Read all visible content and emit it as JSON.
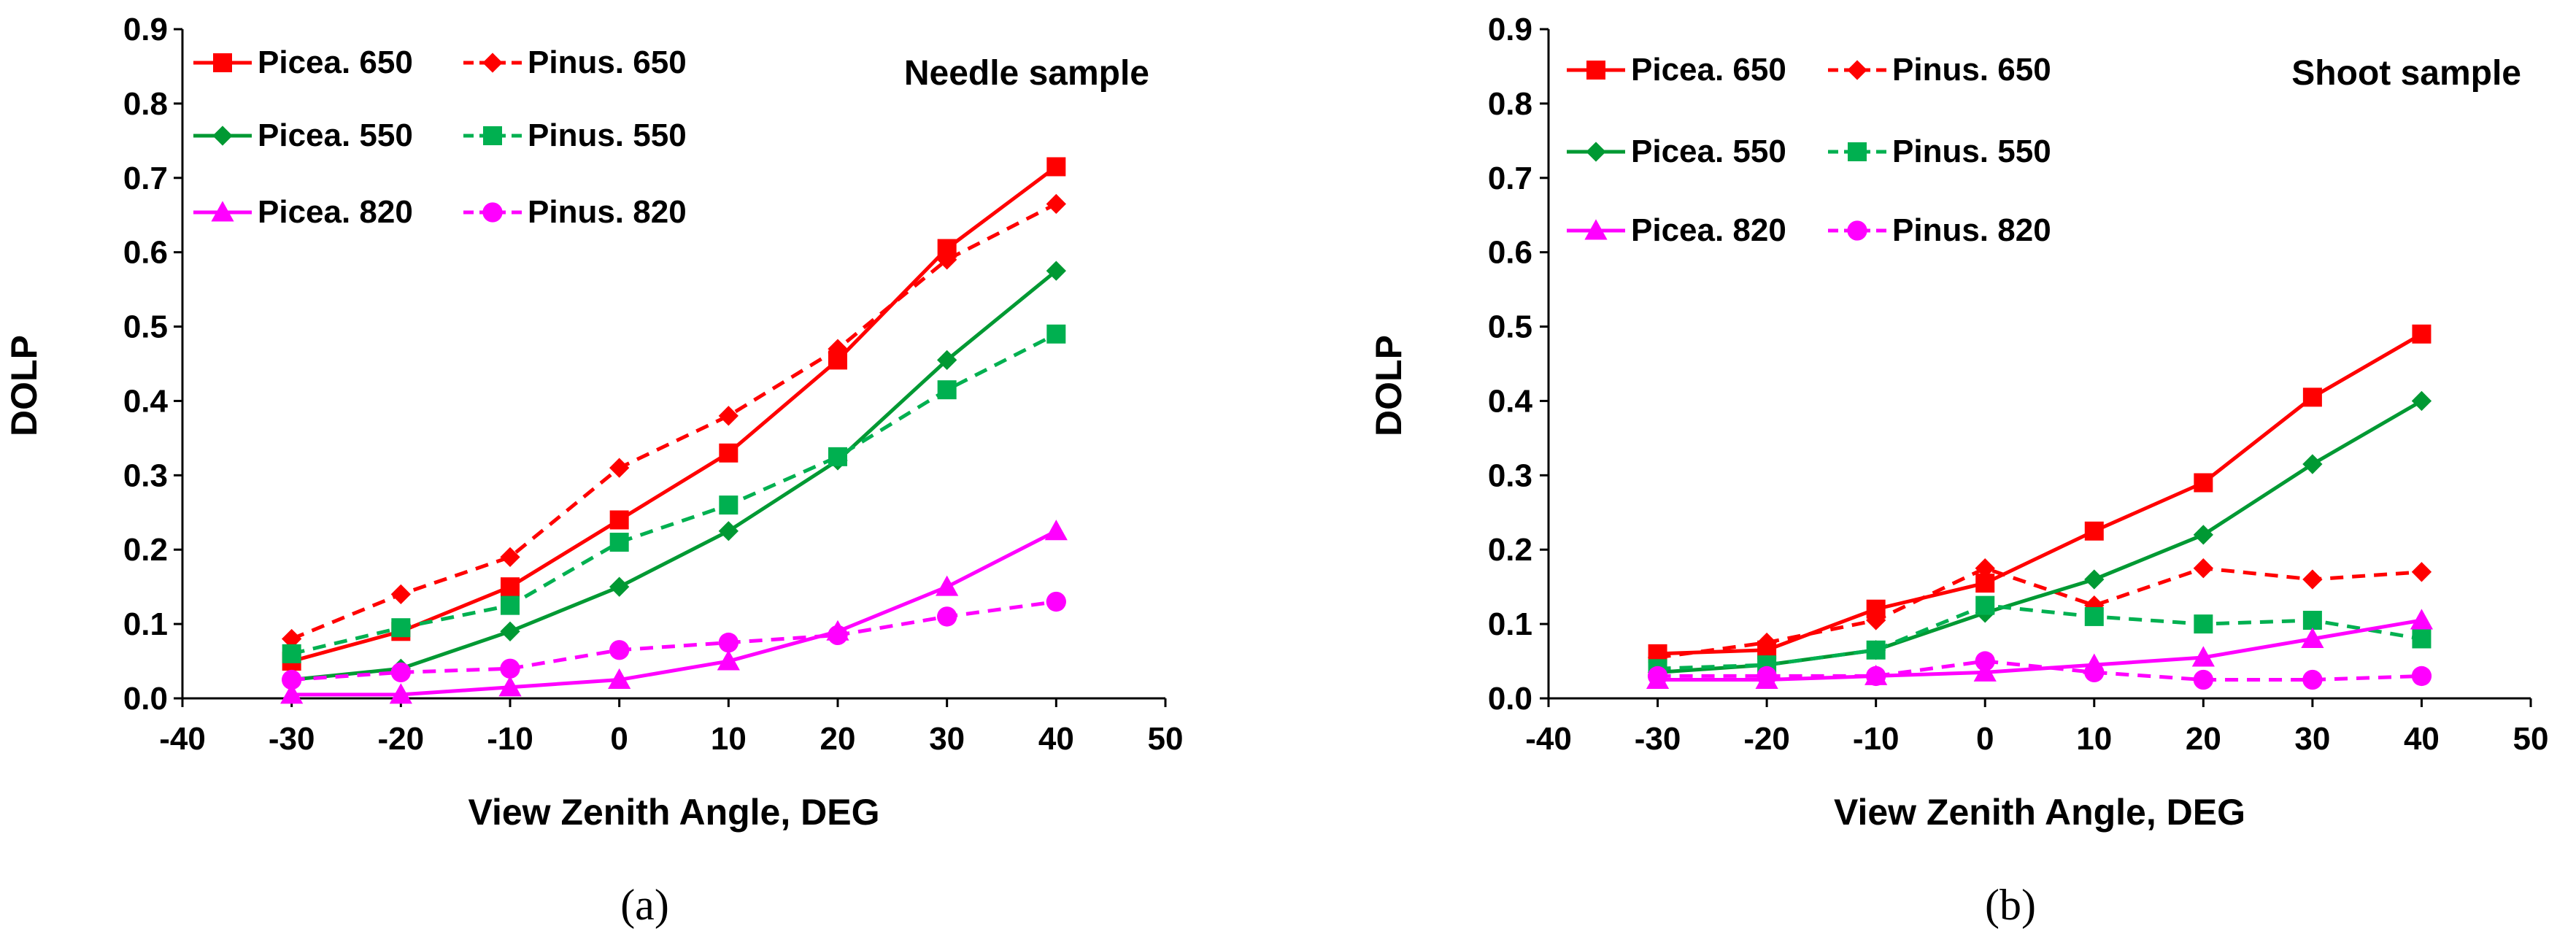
{
  "chart_data": [
    {
      "type": "line",
      "panel_label": "(a)",
      "annotation": "Needle sample",
      "xlabel": "View Zenith Angle, DEG",
      "ylabel": "DOLP",
      "xlim": [
        -40,
        50
      ],
      "ylim": [
        0.0,
        0.9
      ],
      "xticks": [
        "-40",
        "-30",
        "-20",
        "-10",
        "0",
        "10",
        "20",
        "30",
        "40",
        "50"
      ],
      "yticks": [
        "0.0",
        "0.1",
        "0.2",
        "0.3",
        "0.4",
        "0.5",
        "0.6",
        "0.7",
        "0.8",
        "0.9"
      ],
      "grid": false,
      "legend_position": "top",
      "x": [
        -30,
        -20,
        -10,
        0,
        10,
        20,
        30,
        40
      ],
      "series": [
        {
          "name": "Picea. 650",
          "color": "#ff0000",
          "marker": "square",
          "dashed": false,
          "values": [
            0.05,
            0.09,
            0.15,
            0.24,
            0.33,
            0.455,
            0.605,
            0.715
          ]
        },
        {
          "name": "Pinus. 650",
          "color": "#ff0000",
          "marker": "diamond",
          "dashed": true,
          "values": [
            0.08,
            0.14,
            0.19,
            0.31,
            0.38,
            0.47,
            0.59,
            0.665
          ]
        },
        {
          "name": "Picea. 550",
          "color": "#009933",
          "marker": "diamond",
          "dashed": false,
          "values": [
            0.025,
            0.04,
            0.09,
            0.15,
            0.225,
            0.32,
            0.455,
            0.575
          ]
        },
        {
          "name": "Pinus. 550",
          "color": "#00b050",
          "marker": "square",
          "dashed": true,
          "values": [
            0.06,
            0.095,
            0.125,
            0.21,
            0.26,
            0.325,
            0.415,
            0.49
          ]
        },
        {
          "name": "Picea. 820",
          "color": "#ff00ff",
          "marker": "triangle",
          "dashed": false,
          "values": [
            0.005,
            0.005,
            0.015,
            0.025,
            0.05,
            0.09,
            0.15,
            0.225
          ]
        },
        {
          "name": "Pinus. 820",
          "color": "#ff00ff",
          "marker": "circle",
          "dashed": true,
          "values": [
            0.025,
            0.035,
            0.04,
            0.065,
            0.075,
            0.085,
            0.11,
            0.13
          ]
        }
      ]
    },
    {
      "type": "line",
      "panel_label": "(b)",
      "annotation": "Shoot sample",
      "xlabel": "View Zenith Angle, DEG",
      "ylabel": "DOLP",
      "xlim": [
        -40,
        50
      ],
      "ylim": [
        0.0,
        0.9
      ],
      "xticks": [
        "-40",
        "-30",
        "-20",
        "-10",
        "0",
        "10",
        "20",
        "30",
        "40",
        "50"
      ],
      "yticks": [
        "0.0",
        "0.1",
        "0.2",
        "0.3",
        "0.4",
        "0.5",
        "0.6",
        "0.7",
        "0.8",
        "0.9"
      ],
      "grid": false,
      "legend_position": "top",
      "x": [
        -30,
        -20,
        -10,
        0,
        10,
        20,
        30,
        40
      ],
      "series": [
        {
          "name": "Picea. 650",
          "color": "#ff0000",
          "marker": "square",
          "dashed": false,
          "values": [
            0.06,
            0.065,
            0.12,
            0.155,
            0.225,
            0.29,
            0.405,
            0.49
          ]
        },
        {
          "name": "Pinus. 650",
          "color": "#ff0000",
          "marker": "diamond",
          "dashed": true,
          "values": [
            0.055,
            0.075,
            0.105,
            0.175,
            0.125,
            0.175,
            0.16,
            0.17
          ]
        },
        {
          "name": "Picea. 550",
          "color": "#009933",
          "marker": "diamond",
          "dashed": false,
          "values": [
            0.035,
            0.045,
            0.065,
            0.115,
            0.16,
            0.22,
            0.315,
            0.4
          ]
        },
        {
          "name": "Pinus. 550",
          "color": "#00b050",
          "marker": "square",
          "dashed": true,
          "values": [
            0.04,
            0.045,
            0.065,
            0.125,
            0.11,
            0.1,
            0.105,
            0.08
          ]
        },
        {
          "name": "Picea. 820",
          "color": "#ff00ff",
          "marker": "triangle",
          "dashed": false,
          "values": [
            0.025,
            0.025,
            0.03,
            0.035,
            0.045,
            0.055,
            0.08,
            0.105
          ]
        },
        {
          "name": "Pinus. 820",
          "color": "#ff00ff",
          "marker": "circle",
          "dashed": true,
          "values": [
            0.03,
            0.03,
            0.03,
            0.05,
            0.035,
            0.025,
            0.025,
            0.03
          ]
        }
      ]
    }
  ]
}
